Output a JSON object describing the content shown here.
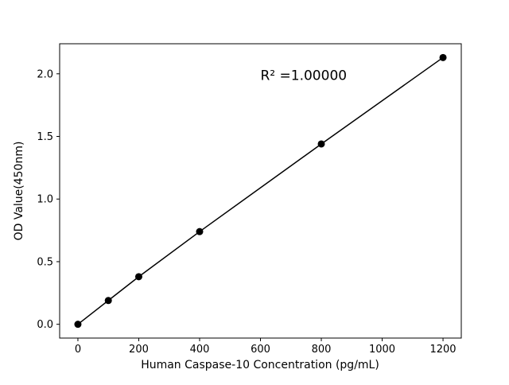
{
  "chart_data": {
    "type": "line",
    "x": [
      0,
      100,
      200,
      400,
      800,
      1200
    ],
    "y": [
      0.0,
      0.19,
      0.38,
      0.74,
      1.44,
      2.13
    ],
    "title": "",
    "xlabel": "Human Caspase-10 Concentration (pg/mL)",
    "ylabel": "OD Value(450nm)",
    "xlim": [
      -60,
      1260
    ],
    "ylim": [
      -0.11,
      2.24
    ],
    "xticks": [
      {
        "value": 0,
        "label": "0"
      },
      {
        "value": 200,
        "label": "200"
      },
      {
        "value": 400,
        "label": "400"
      },
      {
        "value": 600,
        "label": "600"
      },
      {
        "value": 800,
        "label": "800"
      },
      {
        "value": 1000,
        "label": "1000"
      },
      {
        "value": 1200,
        "label": "1200"
      }
    ],
    "yticks": [
      {
        "value": 0.0,
        "label": "0.0"
      },
      {
        "value": 0.5,
        "label": "0.5"
      },
      {
        "value": 1.0,
        "label": "1.0"
      },
      {
        "value": 1.5,
        "label": "1.5"
      },
      {
        "value": 2.0,
        "label": "2.0"
      }
    ],
    "annotation": {
      "text": "R² =1.00000",
      "x": 600,
      "y": 1.95
    },
    "legend": "none",
    "grid": false,
    "marker": "circle",
    "colors": {
      "line": "#000000",
      "marker": "#000000",
      "axis": "#000000",
      "text": "#000000",
      "background": "#ffffff"
    }
  }
}
